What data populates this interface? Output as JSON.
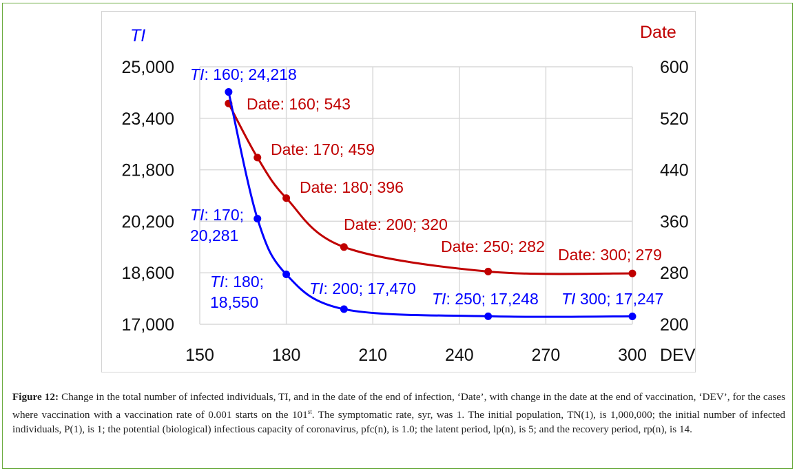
{
  "chart_data": {
    "type": "line",
    "x_axis": {
      "label": "DEV",
      "range": [
        150,
        300
      ],
      "ticks": [
        "150",
        "180",
        "210",
        "240",
        "270",
        "300"
      ]
    },
    "y_left": {
      "label": "TI",
      "range": [
        17000,
        25000
      ],
      "ticks": [
        "25,000",
        "23,400",
        "21,800",
        "20,200",
        "18,600",
        "17,000"
      ]
    },
    "y_right": {
      "label": "Date",
      "range": [
        200,
        600
      ],
      "ticks": [
        "600",
        "520",
        "440",
        "360",
        "280",
        "200"
      ]
    },
    "grid": true,
    "series": [
      {
        "name": "TI",
        "axis": "left",
        "color": "#0000ff",
        "x": [
          160,
          170,
          180,
          200,
          250,
          300
        ],
        "y": [
          24218,
          20281,
          18550,
          17470,
          17248,
          17247
        ],
        "labels": [
          {
            "prefix": "TI",
            "text": ": 160; 24,218"
          },
          {
            "prefix": "TI",
            "text": ": 170;",
            "text2": "20,281"
          },
          {
            "prefix": "TI",
            "text": ": 180;",
            "text2": "18,550"
          },
          {
            "prefix": "TI",
            "text": ": 200;  17,470"
          },
          {
            "prefix": "TI",
            "text": ": 250; 17,248"
          },
          {
            "prefix": "TI",
            "text": " 300; 17,247"
          }
        ]
      },
      {
        "name": "Date",
        "axis": "right",
        "color": "#c00000",
        "x": [
          160,
          170,
          180,
          200,
          250,
          300
        ],
        "y": [
          543,
          459,
          396,
          320,
          282,
          279
        ],
        "labels": [
          "Date: 160; 543",
          "Date: 170; 459",
          "Date: 180; 396",
          "Date: 200; 320",
          "Date: 250; 282",
          "Date: 300; 279"
        ]
      }
    ]
  },
  "caption": {
    "label": "Figure 12:",
    "text": " Change in the total number of infected individuals, TI, and in the date of the end of infection, ‘Date’, with change in the date at the end of vaccination, ‘DEV’, for the cases where vaccination with a vaccination rate of 0.001 starts on the 101",
    "sup": "st",
    "text2": ". The symptomatic rate, syr, was 1. The initial population, TN(1), is 1,000,000; the initial number of infected individuals, P(1), is 1; the potential (biological) infectious capacity of coronavirus, pfc(n), is 1.0; the latent period, lp(n), is 5; and the recovery period, rp(n), is 14."
  }
}
